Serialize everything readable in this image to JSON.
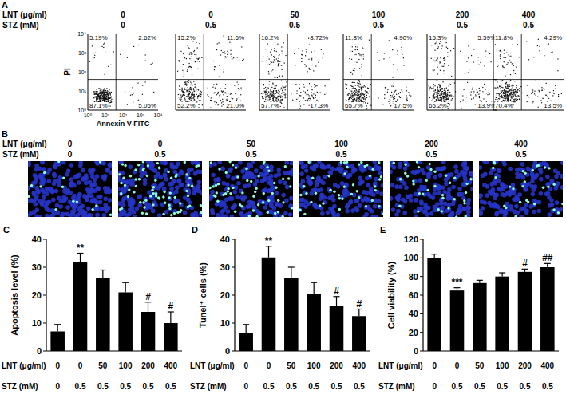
{
  "panel_a": {
    "label": "A",
    "row_titles": [
      "LNT (μg/ml)",
      "STZ (mM)"
    ],
    "lnt": [
      "0",
      "0",
      "50",
      "100",
      "200",
      "400"
    ],
    "stz": [
      "0",
      "0.5",
      "0.5",
      "0.5",
      "0.5",
      "0.5"
    ],
    "x_label": "Annexin V-FITC",
    "y_label": "PI",
    "ticks": [
      "10⁰",
      "10¹",
      "10²",
      "10³",
      "10⁴"
    ],
    "plots": [
      {
        "ul": "5.19%",
        "ur": "2.62%",
        "ll": "87.1%",
        "lr": "5.05%"
      },
      {
        "ul": "15.2%",
        "ur": "11.6%",
        "ll": "52.2%",
        "lr": "21.0%"
      },
      {
        "ul": "16.2%",
        "ur": "8.72%",
        "ll": "57.7%",
        "lr": "17.3%"
      },
      {
        "ul": "11.8%",
        "ur": "4.90%",
        "ll": "65.7%",
        "lr": "17.5%"
      },
      {
        "ul": "15.3%",
        "ur": "5.59%",
        "ll": "65.2%",
        "lr": "13.9%"
      },
      {
        "ul": "11.8%",
        "ur": "4.29%",
        "ll": "70.4%",
        "lr": "13.5%"
      }
    ]
  },
  "panel_b": {
    "label": "B",
    "row_titles": [
      "LNT (μg/ml)",
      "STZ (mM)"
    ],
    "lnt": [
      "0",
      "0",
      "50",
      "100",
      "200",
      "400"
    ],
    "stz": [
      "0",
      "0.5",
      "0.5",
      "0.5",
      "0.5",
      "0.5"
    ]
  },
  "chart_data": [
    {
      "type": "bar",
      "panel": "C",
      "y_label": "Apoptosis level (%)",
      "category_titles": [
        "LNT (μg/ml)",
        "STZ (mM)"
      ],
      "categories": [
        "0",
        "0",
        "50",
        "100",
        "200",
        "400"
      ],
      "categories_2": [
        "0",
        "0.5",
        "0.5",
        "0.5",
        "0.5",
        "0.5"
      ],
      "values": [
        7,
        32,
        26,
        21,
        14,
        10
      ],
      "errors": [
        2.5,
        3,
        3,
        3.5,
        3.5,
        4
      ],
      "annotations": [
        null,
        "**",
        null,
        null,
        "#",
        "#"
      ],
      "color": "#000000",
      "ylim": [
        0,
        40
      ],
      "yticks": [
        0,
        10,
        20,
        30,
        40
      ],
      "grid": false
    },
    {
      "type": "bar",
      "panel": "D",
      "y_label": "Tunel⁺ cells (%)",
      "category_titles": [
        "LNT (μg/ml)",
        "STZ (mM)"
      ],
      "categories": [
        "0",
        "0",
        "50",
        "100",
        "200",
        "400"
      ],
      "categories_2": [
        "0",
        "0.5",
        "0.5",
        "0.5",
        "0.5",
        "0.5"
      ],
      "values": [
        6.5,
        33.5,
        26,
        20.5,
        16,
        12.5
      ],
      "errors": [
        3,
        4,
        4,
        4,
        3.5,
        2.5
      ],
      "annotations": [
        null,
        "**",
        null,
        null,
        "#",
        "#"
      ],
      "color": "#000000",
      "ylim": [
        0,
        40
      ],
      "yticks": [
        0,
        10,
        20,
        30,
        40
      ],
      "grid": false
    },
    {
      "type": "bar",
      "panel": "E",
      "y_label": "Cell viability (%)",
      "category_titles": [
        "LNT (μg/ml)",
        "STZ (mM)"
      ],
      "categories": [
        "0",
        "0",
        "50",
        "100",
        "200",
        "400"
      ],
      "categories_2": [
        "0",
        "0.5",
        "0.5",
        "0.5",
        "0.5",
        "0.5"
      ],
      "values": [
        100,
        65,
        73,
        80,
        85,
        90
      ],
      "errors": [
        4,
        3,
        3,
        4,
        3,
        4
      ],
      "annotations": [
        null,
        "***",
        null,
        null,
        "#",
        "##"
      ],
      "color": "#000000",
      "ylim": [
        0,
        120
      ],
      "yticks": [
        0,
        20,
        40,
        60,
        80,
        100,
        120
      ],
      "grid": false
    }
  ]
}
